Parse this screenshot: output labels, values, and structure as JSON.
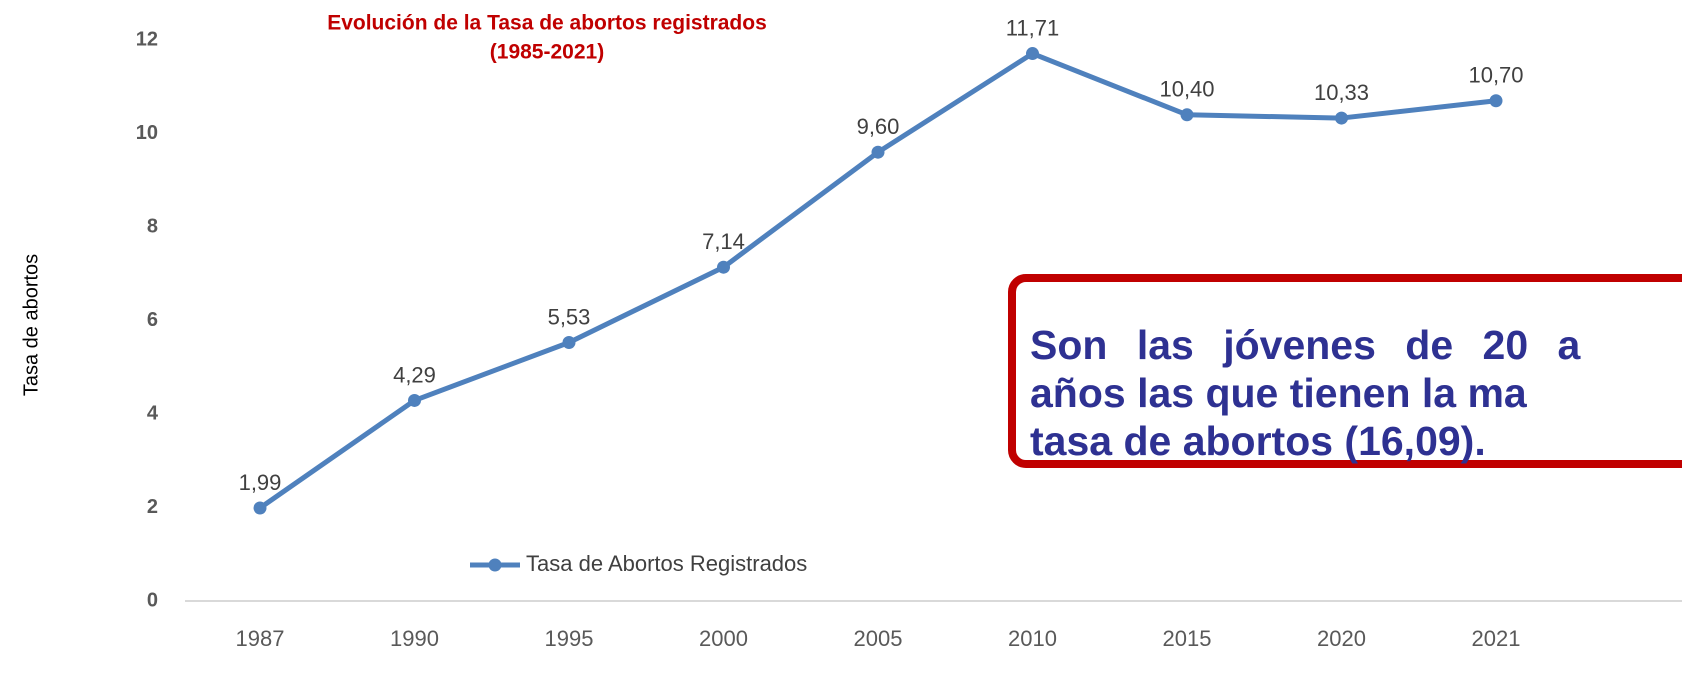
{
  "chart_data": {
    "type": "line",
    "title": "Evolución de la Tasa de abortos registrados",
    "subtitle": "(1985-2021)",
    "y_label": "Tasa de abortos",
    "categories": [
      "1987",
      "1990",
      "1995",
      "2000",
      "2005",
      "2010",
      "2015",
      "2020",
      "2021"
    ],
    "series": [
      {
        "name": "Tasa de Abortos Registrados",
        "color": "#4f81bd",
        "values": [
          1.99,
          4.29,
          5.53,
          7.14,
          9.6,
          11.71,
          10.4,
          10.33,
          10.7
        ],
        "value_labels": [
          "1,99",
          "4,29",
          "5,53",
          "7,14",
          "9,60",
          "11,71",
          "10,40",
          "10,33",
          "10,70"
        ]
      }
    ],
    "ylim": [
      0,
      12
    ],
    "yticks": [
      0,
      2,
      4,
      6,
      8,
      10,
      12
    ],
    "grid": false,
    "legend": "bottom-left",
    "annotation": [
      "Son las jóvenes de 20 a",
      "años las que tienen la ma",
      "tasa de abortos (16,09)."
    ]
  }
}
